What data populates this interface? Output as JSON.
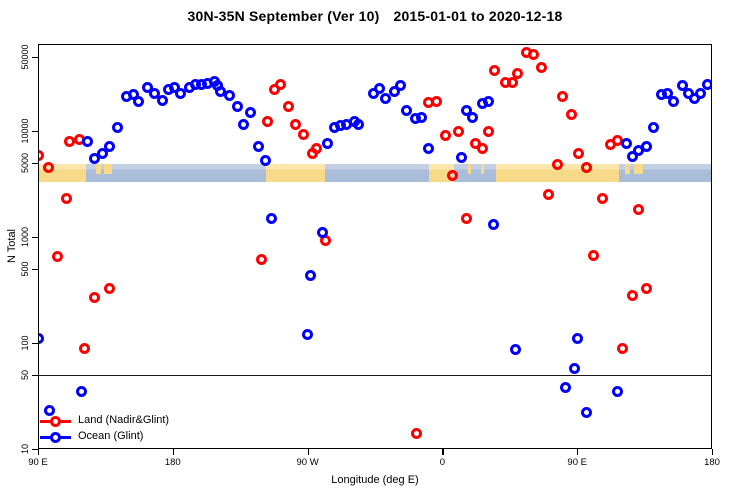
{
  "title": {
    "main": "30N-35N September (Ver 10)",
    "dates": "2015-01-01 to 2020-12-18"
  },
  "axes": {
    "x": {
      "label": "Longitude (deg E)",
      "range_deg": [
        0,
        450
      ],
      "ticks": [
        {
          "pos": 0,
          "label": "90 E"
        },
        {
          "pos": 90,
          "label": "180"
        },
        {
          "pos": 180,
          "label": "90 W"
        },
        {
          "pos": 270,
          "label": "0"
        },
        {
          "pos": 360,
          "label": "90 E"
        },
        {
          "pos": 450,
          "label": "180"
        }
      ]
    },
    "y": {
      "label": "N Total",
      "scale": "log",
      "range": [
        10,
        60000
      ],
      "ticks": [
        "50000",
        "10000",
        "5000",
        "1000",
        "500",
        "100",
        "50",
        "10"
      ]
    }
  },
  "legend": {
    "items": [
      {
        "label": "Land (Nadir&Glint)",
        "color": "#ff0000"
      },
      {
        "label": "Ocean (Glint)",
        "color": "#0000ff"
      }
    ]
  },
  "colors": {
    "land_series": "#ff0000",
    "ocean_series": "#0000ff",
    "map_land": "#f7d98a",
    "map_ocean": "#a9bdd9"
  },
  "reference_line": {
    "value": 50
  },
  "map_band": {
    "note": "land/ocean mask strip drawn across plot near N=5000",
    "land_segments_deg": [
      [
        0,
        32
      ],
      [
        152,
        191.5
      ],
      [
        261,
        278
      ],
      [
        306,
        388
      ]
    ],
    "island_segments_deg": [
      [
        39,
        42
      ],
      [
        44,
        49.5
      ],
      [
        287,
        289
      ],
      [
        296,
        298
      ],
      [
        392,
        395
      ],
      [
        398,
        404
      ]
    ]
  },
  "chart_data": {
    "type": "scatter",
    "title": "30N-35N September (Ver 10)   2015-01-01 to 2020-12-18",
    "xlabel": "Longitude (deg E)",
    "ylabel": "N Total",
    "x_axis_note": "x = degrees east of 90E along wrapped longitude axis (0..450)",
    "ylim": [
      10,
      60000
    ],
    "y_scale": "log",
    "legend_position": "bottom-left",
    "series": [
      {
        "name": "Land (Nadir&Glint)",
        "color": "#ff0000",
        "points": [
          [
            0,
            5900
          ],
          [
            7,
            4500
          ],
          [
            13,
            650
          ],
          [
            19,
            2300
          ],
          [
            21,
            7900
          ],
          [
            28,
            8400
          ],
          [
            31,
            88
          ],
          [
            38,
            270
          ],
          [
            48,
            330
          ],
          [
            149,
            620
          ],
          [
            153,
            12400
          ],
          [
            158,
            24900
          ],
          [
            162,
            27700
          ],
          [
            167,
            17200
          ],
          [
            172,
            11600
          ],
          [
            177,
            9300
          ],
          [
            183,
            6100
          ],
          [
            186,
            6800
          ],
          [
            192,
            930
          ],
          [
            253,
            14
          ],
          [
            261,
            18700
          ],
          [
            266,
            19100
          ],
          [
            272,
            9000
          ],
          [
            277,
            3800
          ],
          [
            281,
            9800
          ],
          [
            286,
            1500
          ],
          [
            292,
            7600
          ],
          [
            297,
            6900
          ],
          [
            301,
            9800
          ],
          [
            305,
            37600
          ],
          [
            312,
            28400
          ],
          [
            317,
            28400
          ],
          [
            320,
            34500
          ],
          [
            326,
            54500
          ],
          [
            331,
            52200
          ],
          [
            336,
            39400
          ],
          [
            341,
            2500
          ],
          [
            347,
            4800
          ],
          [
            350,
            21100
          ],
          [
            356,
            14200
          ],
          [
            361,
            6100
          ],
          [
            366,
            4500
          ],
          [
            371,
            670
          ],
          [
            377,
            2300
          ],
          [
            382,
            7400
          ],
          [
            387,
            8200
          ],
          [
            390,
            88
          ],
          [
            397,
            280
          ],
          [
            401,
            1800
          ],
          [
            406,
            330
          ]
        ]
      },
      {
        "name": "Ocean (Glint)",
        "color": "#0000ff",
        "points": [
          [
            0,
            110
          ],
          [
            8,
            23
          ],
          [
            29,
            35
          ],
          [
            33,
            7900
          ],
          [
            38,
            5500
          ],
          [
            43,
            6200
          ],
          [
            48,
            7100
          ],
          [
            53,
            10900
          ],
          [
            59,
            21100
          ],
          [
            64,
            22000
          ],
          [
            67,
            18800
          ],
          [
            73,
            25700
          ],
          [
            78,
            22400
          ],
          [
            83,
            19200
          ],
          [
            87,
            24500
          ],
          [
            91,
            25700
          ],
          [
            95,
            22600
          ],
          [
            101,
            25700
          ],
          [
            105,
            27700
          ],
          [
            109,
            27700
          ],
          [
            113,
            28300
          ],
          [
            118,
            29600
          ],
          [
            120,
            26900
          ],
          [
            122,
            23800
          ],
          [
            128,
            21600
          ],
          [
            133,
            16900
          ],
          [
            137,
            11600
          ],
          [
            142,
            14800
          ],
          [
            147,
            7100
          ],
          [
            152,
            5300
          ],
          [
            156,
            1500
          ],
          [
            180,
            120
          ],
          [
            182,
            430
          ],
          [
            190,
            1100
          ],
          [
            193,
            7700
          ],
          [
            198,
            10900
          ],
          [
            202,
            11200
          ],
          [
            206,
            11400
          ],
          [
            211,
            12200
          ],
          [
            214,
            11600
          ],
          [
            224,
            22800
          ],
          [
            228,
            25000
          ],
          [
            232,
            20100
          ],
          [
            238,
            23800
          ],
          [
            242,
            26900
          ],
          [
            246,
            15600
          ],
          [
            252,
            13000
          ],
          [
            256,
            13300
          ],
          [
            261,
            6900
          ],
          [
            283,
            5600
          ],
          [
            286,
            15600
          ],
          [
            290,
            13300
          ],
          [
            297,
            18000
          ],
          [
            301,
            19100
          ],
          [
            304,
            1300
          ],
          [
            319,
            86
          ],
          [
            352,
            38
          ],
          [
            358,
            57
          ],
          [
            360,
            110
          ],
          [
            366,
            22
          ],
          [
            387,
            35
          ],
          [
            393,
            7700
          ],
          [
            397,
            5700
          ],
          [
            401,
            6500
          ],
          [
            406,
            7100
          ],
          [
            411,
            10900
          ],
          [
            416,
            22000
          ],
          [
            420,
            22800
          ],
          [
            424,
            18800
          ],
          [
            430,
            26900
          ],
          [
            434,
            22800
          ],
          [
            438,
            20100
          ],
          [
            442,
            22400
          ],
          [
            447,
            27700
          ]
        ]
      }
    ]
  }
}
